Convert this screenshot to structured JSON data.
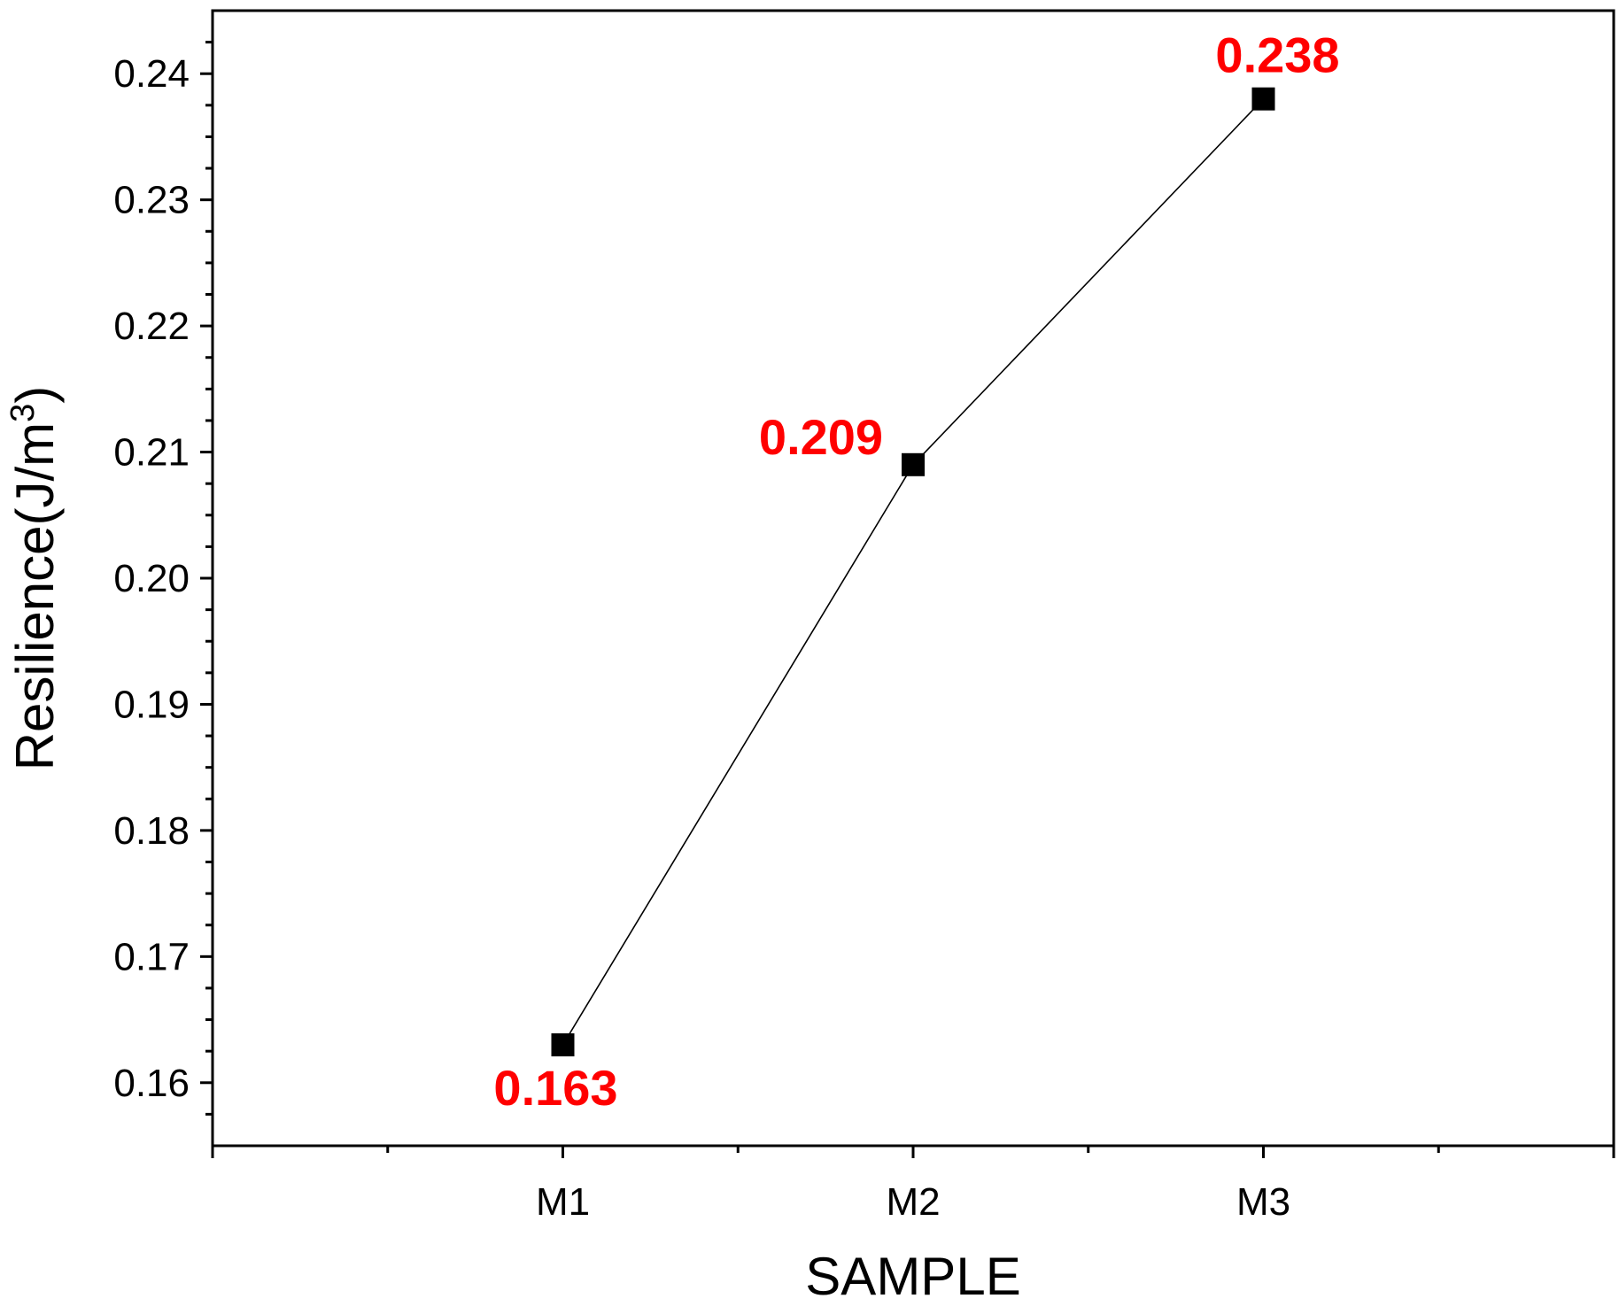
{
  "chart_data": {
    "type": "line",
    "title": "",
    "xlabel": "SAMPLE",
    "ylabel": "Resilience(J/m",
    "ylabel_superscript": "3",
    "ylabel_close": ")",
    "categories": [
      "M1",
      "M2",
      "M3"
    ],
    "series": [
      {
        "values": [
          0.163,
          0.209,
          0.238
        ]
      }
    ],
    "data_labels": [
      "0.163",
      "0.209",
      "0.238"
    ],
    "ylim": [
      0.155,
      0.245
    ],
    "yticks": [
      "0.16",
      "0.17",
      "0.18",
      "0.19",
      "0.20",
      "0.21",
      "0.22",
      "0.23",
      "0.24"
    ],
    "ytick_values": [
      0.16,
      0.17,
      0.18,
      0.19,
      0.2,
      0.21,
      0.22,
      0.23,
      0.24
    ],
    "grid": false,
    "legend": "none",
    "colors": {
      "line": "#000000",
      "marker": "#000000",
      "data_label": "#ff0000",
      "axis": "#000000"
    }
  }
}
